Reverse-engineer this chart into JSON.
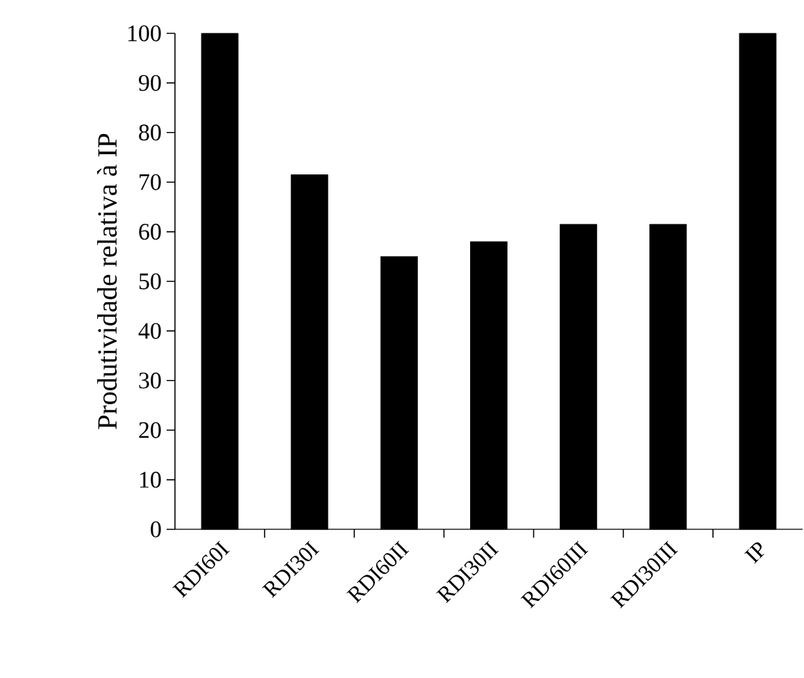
{
  "chart_data": {
    "type": "bar",
    "ylabel": "Produtividade relativa à IP",
    "categories": [
      "RDI60I",
      "RDI30I",
      "RDI60II",
      "RDI30II",
      "RDI60III",
      "RDI30III",
      "IP"
    ],
    "values": [
      100,
      71.5,
      55,
      58,
      61.5,
      61.5,
      100
    ],
    "color": "#000000",
    "ylim": [
      0,
      100
    ],
    "yticks": [
      0,
      10,
      20,
      30,
      40,
      50,
      60,
      70,
      80,
      90,
      100
    ],
    "grid": false
  }
}
